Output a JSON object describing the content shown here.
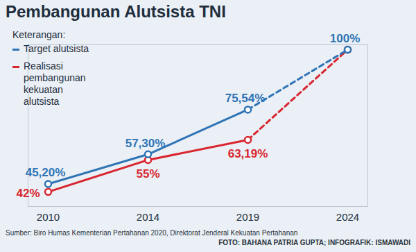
{
  "chart_data": {
    "type": "line",
    "title": "Pembangunan Alutsista TNI",
    "legend_title": "Keterangan:",
    "source": "Sumber: Biro Humas Kementerian Pertahanan 2020, Direktorat Jenderal Kekuatan Pertahanan",
    "credit": "FOTO: BAHANA PATRIA GUPTA; INFOGRAFIK: ISMAWADI",
    "categories": [
      "2010",
      "2014",
      "2019",
      "2024"
    ],
    "series": [
      {
        "name": "Target alutsista",
        "color": "#2f74b5",
        "marker": "circle",
        "values": [
          45.2,
          57.3,
          75.54,
          100
        ],
        "value_labels": [
          "45,20%",
          "57,30%",
          "75,54%",
          "100%"
        ]
      },
      {
        "name": "Realisasi pembangunan kekuatan alutsista",
        "color": "#d9252f",
        "marker": "circle",
        "values": [
          42,
          55,
          63.19,
          100
        ],
        "value_labels": [
          "42%",
          "55%",
          "63,19%",
          null
        ]
      }
    ],
    "ylim": [
      36,
      102
    ],
    "yticks": [],
    "grid": false,
    "legend": "top-left",
    "data_labels": true,
    "tick_labels": "x"
  }
}
